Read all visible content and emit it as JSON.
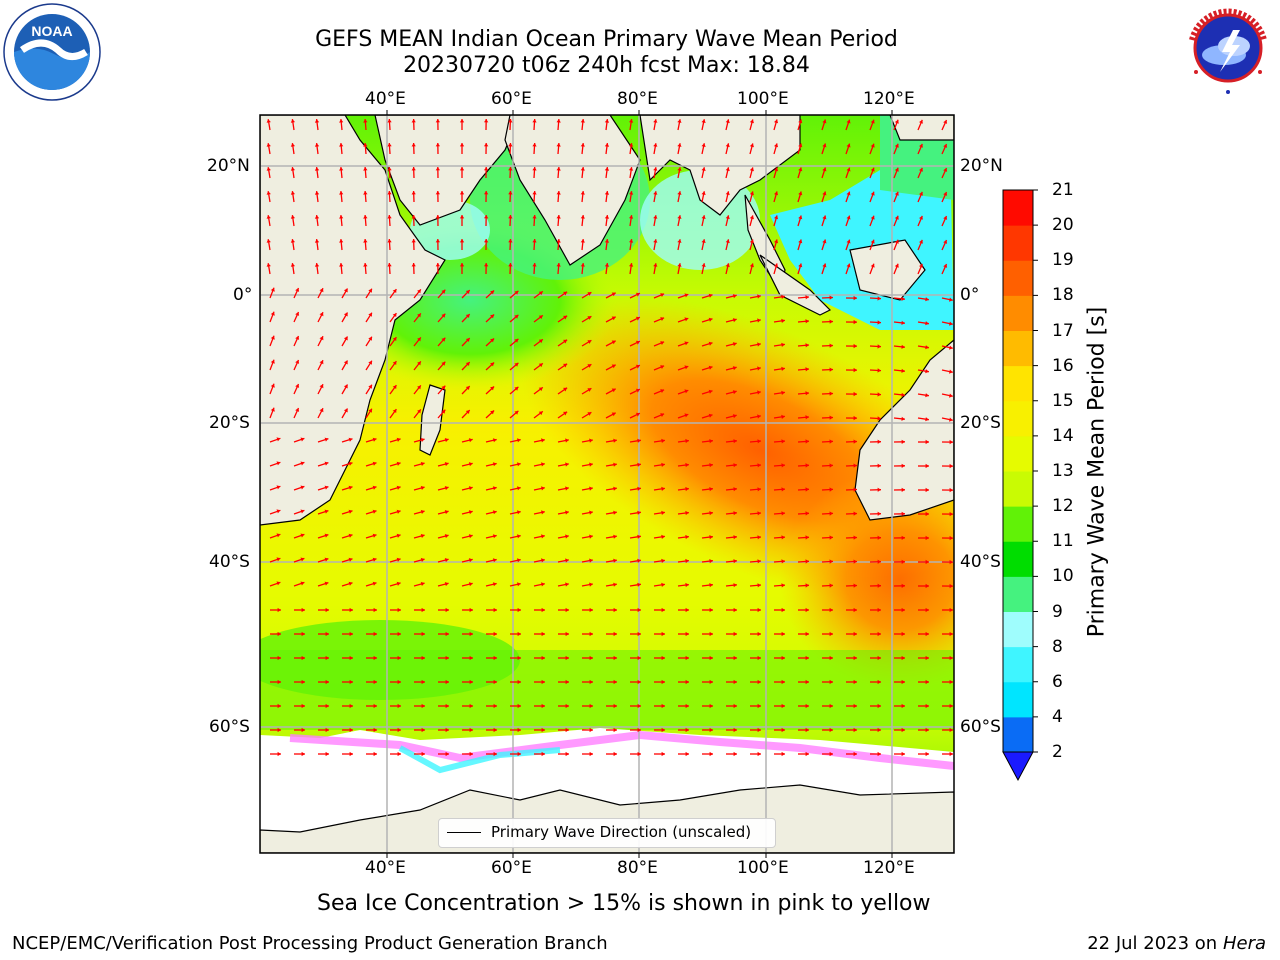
{
  "title": {
    "line1": "GEFS MEAN Indian Ocean Primary Wave Mean Period",
    "line2": "20230720 t06z 240h fcst   Max: 18.84"
  },
  "logos": {
    "noaa": {
      "text": "NOAA",
      "ring_text": "NATIONAL OCEANIC AND ATMOSPHERIC ADMINISTRATION · U.S. DEPARTMENT OF COMMERCE"
    },
    "nws": {
      "ring_text": "NATIONAL WEATHER SERVICE"
    }
  },
  "map": {
    "lon_ticks": [
      "40°E",
      "60°E",
      "80°E",
      "100°E",
      "120°E"
    ],
    "lat_ticks": [
      "20°N",
      "0°",
      "20°S",
      "40°S",
      "60°S"
    ],
    "lon_range": [
      20,
      130
    ],
    "lat_range": [
      -74,
      28
    ],
    "grid": true,
    "max_value": 18.84,
    "colors": {
      "land": "#efeee0",
      "ice": "#ffffff",
      "arrow": "#ff0000"
    }
  },
  "colorbar": {
    "label": "Primary Wave Mean Period [s]",
    "levels": [
      "2",
      "4",
      "6",
      "8",
      "9",
      "10",
      "11",
      "12",
      "13",
      "14",
      "15",
      "16",
      "17",
      "18",
      "19",
      "20",
      "21"
    ],
    "colors": [
      "#0a6cf5",
      "#00e5ff",
      "#3ff5ff",
      "#9ffdfd",
      "#45f27f",
      "#00dd00",
      "#61f207",
      "#c9fb03",
      "#e6fb00",
      "#f8f000",
      "#ffe400",
      "#ffbb00",
      "#ff8c00",
      "#ff6000",
      "#ff3700",
      "#ff0a00"
    ],
    "under_color": "#1a1aff"
  },
  "legend": {
    "label": "Primary Wave Direction (unscaled)"
  },
  "caption": "Sea Ice Concentration > 15% is shown in pink to yellow",
  "footer": {
    "left": "NCEP/EMC/Verification Post Processing Product Generation Branch",
    "right_date": "22 Jul 2023 on ",
    "right_machine": "Hera"
  }
}
